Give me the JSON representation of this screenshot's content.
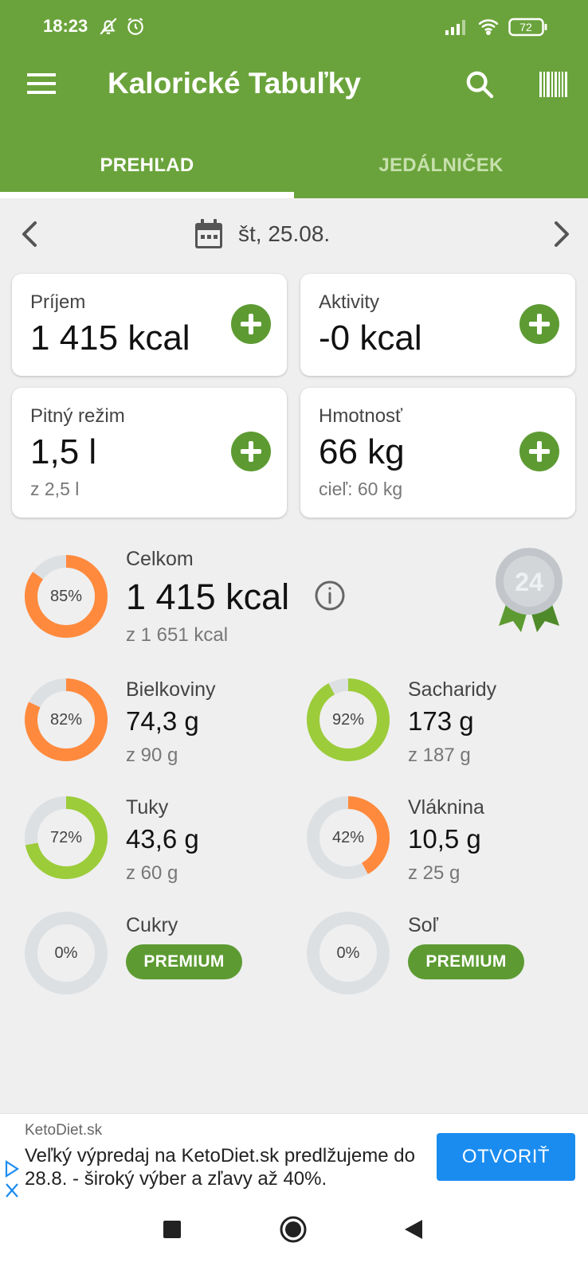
{
  "status_bar": {
    "time": "18:23",
    "battery": "72",
    "icons": [
      "bell-off-icon",
      "alarm-icon",
      "signal-icon",
      "wifi-icon",
      "battery-icon"
    ]
  },
  "toolbar": {
    "title": "Kalorické Tabuľky",
    "icons": [
      "menu-icon",
      "search-icon",
      "barcode-icon"
    ]
  },
  "tabs": [
    {
      "label": "PREHĽAD",
      "active": true
    },
    {
      "label": "JEDÁLNIČEK",
      "active": false
    }
  ],
  "date_nav": {
    "date": "št, 25.08."
  },
  "cards": {
    "intake": {
      "label": "Príjem",
      "value": "1 415 kcal"
    },
    "activities": {
      "label": "Aktivity",
      "value": "-0 kcal"
    },
    "drinking": {
      "label": "Pitný režim",
      "value": "1,5 l",
      "sub": "z 2,5 l"
    },
    "weight": {
      "label": "Hmotnosť",
      "value": "66 kg",
      "sub": "cieľ: 60 kg"
    }
  },
  "summary": {
    "total": {
      "label": "Celkom",
      "value": "1 415 kcal",
      "sub": "z 1 651 kcal",
      "percent_text": "85%",
      "percent": 85,
      "color": "#ff8a3d"
    },
    "badge_number": "24",
    "nutrients": [
      {
        "key": "protein",
        "label": "Bielkoviny",
        "value": "74,3 g",
        "sub": "z 90 g",
        "percent_text": "82%",
        "percent": 82,
        "color": "#ff8a3d"
      },
      {
        "key": "carbs",
        "label": "Sacharidy",
        "value": "173 g",
        "sub": "z 187 g",
        "percent_text": "92%",
        "percent": 92,
        "color": "#9ccc3a"
      },
      {
        "key": "fat",
        "label": "Tuky",
        "value": "43,6 g",
        "sub": "z 60 g",
        "percent_text": "72%",
        "percent": 72,
        "color": "#9ccc3a"
      },
      {
        "key": "fiber",
        "label": "Vláknina",
        "value": "10,5 g",
        "sub": "z 25 g",
        "percent_text": "42%",
        "percent": 42,
        "color": "#ff8a3d"
      },
      {
        "key": "sugar",
        "label": "Cukry",
        "premium": "PREMIUM",
        "percent_text": "0%",
        "percent": 0,
        "color": "#ff8a3d"
      },
      {
        "key": "salt",
        "label": "Soľ",
        "premium": "PREMIUM",
        "percent_text": "0%",
        "percent": 0,
        "color": "#ff8a3d"
      }
    ]
  },
  "ad": {
    "source": "KetoDiet.sk",
    "text": "Veľký výpredaj na KetoDiet.sk predlžujeme do 28.8. - široký výber a zľavy až 40%.",
    "button": "OTVORIŤ"
  },
  "colors": {
    "brand": "#6aa33b",
    "accent_green": "#5d9b32",
    "ring_orange": "#ff8a3d",
    "ring_green": "#9ccc3a",
    "ring_track": "#dde0e3",
    "ad_button": "#1a8cf0"
  }
}
